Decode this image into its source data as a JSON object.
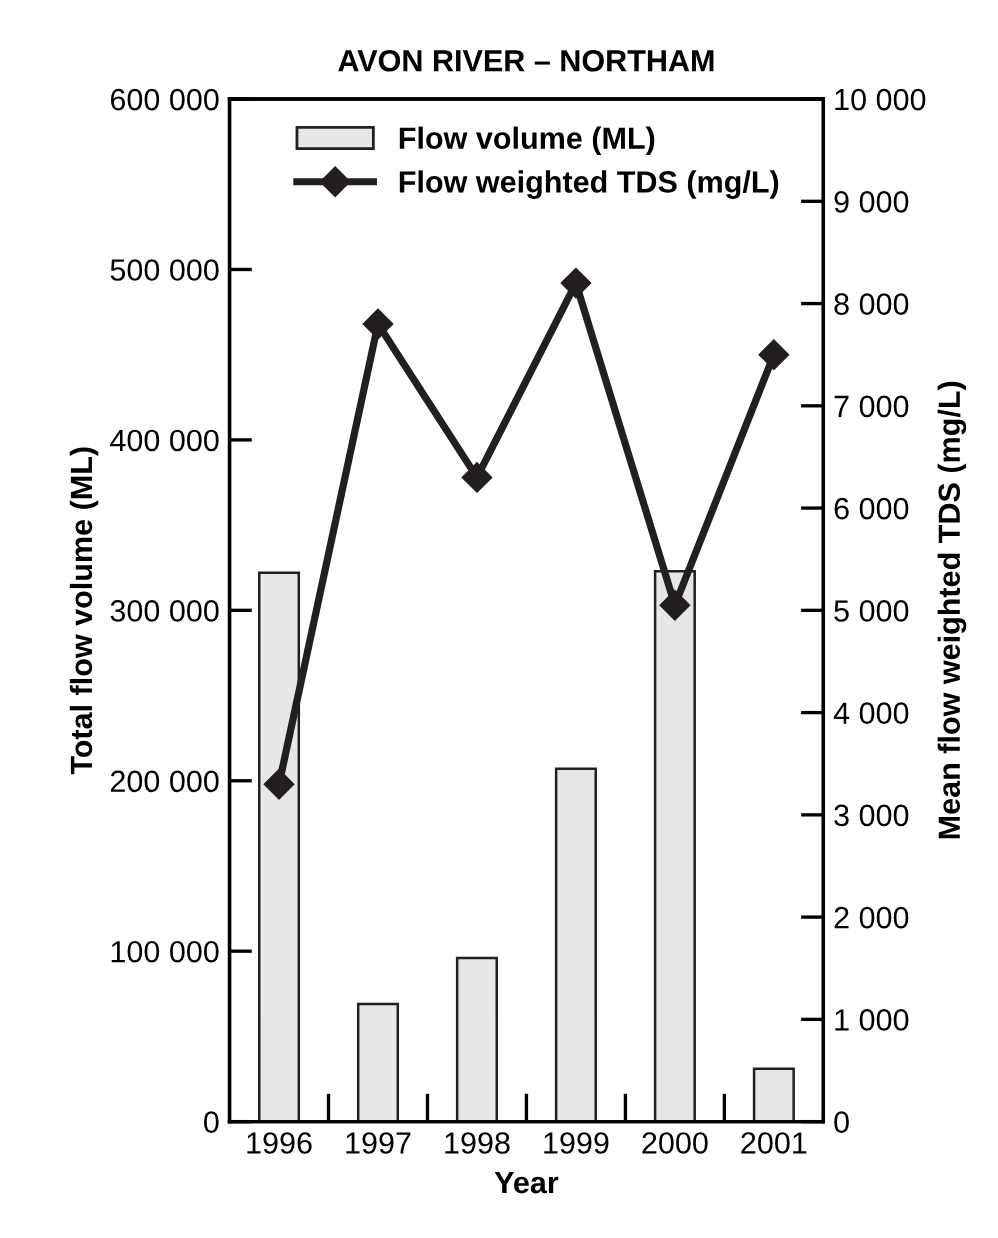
{
  "chart_data": {
    "type": "bar",
    "title": "AVON RIVER – NORTHAM",
    "xlabel": "Year",
    "ylabel": "Total flow volume (ML)",
    "y2label": "Mean flow weighted TDS (mg/L)",
    "categories": [
      "1996",
      "1997",
      "1998",
      "1999",
      "2000",
      "2001"
    ],
    "series": [
      {
        "name": "Flow volume (ML)",
        "color": "#e6e7e8",
        "values": [
          322000,
          69000,
          96000,
          207000,
          323000,
          31000
        ]
      },
      {
        "name": "Flow weighted TDS (mg/L)",
        "type": "line",
        "axis": "y2",
        "color": "#231f20",
        "marker": "diamond",
        "values": [
          3300,
          7800,
          6300,
          8200,
          5050,
          7500
        ]
      }
    ],
    "ylim": [
      0,
      600000
    ],
    "yticks": [
      0,
      {
        "value": 100000,
        "label": "100 000"
      },
      {
        "value": 200000,
        "label": "200 000"
      },
      {
        "value": 300000,
        "label": "300 000"
      },
      {
        "value": 400000,
        "label": "400 000"
      },
      {
        "value": 500000,
        "label": "500 000"
      },
      {
        "value": 600000,
        "label": "600 000"
      }
    ],
    "y2lim": [
      0,
      10000
    ],
    "y2ticks": [
      0,
      {
        "value": 1000,
        "label": "1 000"
      },
      {
        "value": 2000,
        "label": "2 000"
      },
      {
        "value": 3000,
        "label": "3 000"
      },
      {
        "value": 4000,
        "label": "4 000"
      },
      {
        "value": 5000,
        "label": "5 000"
      },
      {
        "value": 6000,
        "label": "6 000"
      },
      {
        "value": 7000,
        "label": "7 000"
      },
      {
        "value": 8000,
        "label": "8 000"
      },
      {
        "value": 9000,
        "label": "9 000"
      },
      {
        "value": 10000,
        "label": "10 000"
      }
    ],
    "legend": "top",
    "grid": false
  }
}
